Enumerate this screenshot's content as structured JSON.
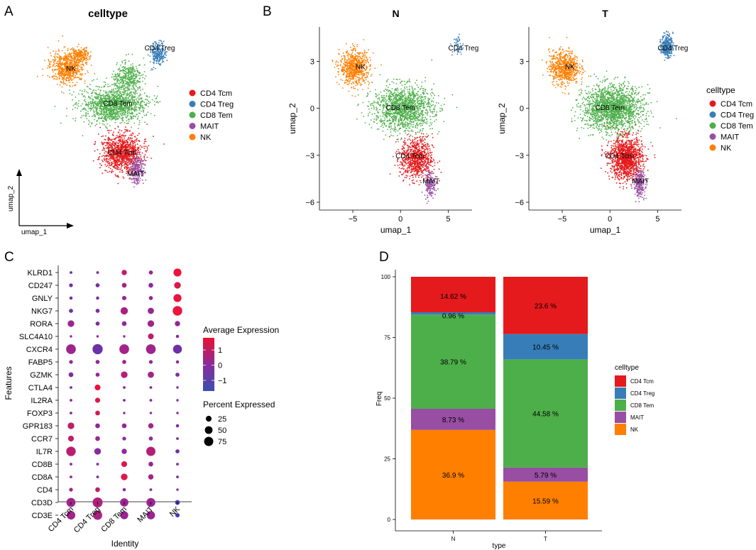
{
  "panel_labels": [
    "A",
    "B",
    "C",
    "D"
  ],
  "celltypes": [
    "CD4 Tcm",
    "CD4 Treg",
    "CD8 Tem",
    "MAIT",
    "NK"
  ],
  "colors": {
    "CD4 Tcm": "#E41A1C",
    "CD4 Treg": "#377EB8",
    "CD8 Tem": "#4DAF4A",
    "MAIT": "#984EA3",
    "NK": "#FF7F00"
  },
  "chart_data": [
    {
      "id": "A",
      "type": "scatter",
      "title": "celltype",
      "xlabel": "umap_1",
      "ylabel": "umap_2",
      "legend_entries": [
        "CD4 Tcm",
        "CD4 Treg",
        "CD8 Tem",
        "MAIT",
        "NK"
      ],
      "cluster_labels": [
        "NK",
        "CD4 Treg",
        "CD8 Tem",
        "CD4 Tcm",
        "MAIT"
      ]
    },
    {
      "id": "B",
      "type": "scatter",
      "facets": [
        "N",
        "T"
      ],
      "xlabel": "umap_1",
      "ylabel": "umap_2",
      "xticks": [
        -5,
        0,
        5
      ],
      "yticks": [
        3,
        0,
        -3,
        -6
      ],
      "xlim": [
        -8.5,
        7.5
      ],
      "ylim": [
        -6.5,
        5.2
      ],
      "legend_title": "celltype",
      "legend_entries": [
        "CD4 Tcm",
        "CD4 Treg",
        "CD8 Tem",
        "MAIT",
        "NK"
      ],
      "cluster_labels": [
        "NK",
        "CD4 Treg",
        "CD8 Tem",
        "CD4 Tcm",
        "MAIT"
      ],
      "clusters": [
        {
          "name": "NK",
          "cx": -4.8,
          "cy": 2.6,
          "sx": 1.3,
          "sy": 0.9
        },
        {
          "name": "CD8 Tem",
          "cx": 0.3,
          "cy": 0.0,
          "sx": 2.6,
          "sy": 1.2
        },
        {
          "name": "CD4 Tcm",
          "cx": 1.7,
          "cy": -3.2,
          "sx": 1.4,
          "sy": 1.1
        },
        {
          "name": "MAIT",
          "cx": 3.1,
          "cy": -4.8,
          "sx": 0.5,
          "sy": 0.7
        },
        {
          "name": "CD4 Treg",
          "cx": 6.0,
          "cy": 4.0,
          "sx": 0.5,
          "sy": 0.6
        }
      ]
    },
    {
      "id": "C",
      "type": "dot",
      "xlabel": "Identity",
      "ylabel": "Features",
      "identities": [
        "CD4 Tcm",
        "CD4 Treg",
        "CD8 Tem",
        "MAIT",
        "NK"
      ],
      "features": [
        "KLRD1",
        "CD247",
        "GNLY",
        "NKG7",
        "RORA",
        "SLC4A10",
        "CXCR4",
        "FABP5",
        "GZMK",
        "CTLA4",
        "IL2RA",
        "FOXP3",
        "GPR183",
        "CCR7",
        "IL7R",
        "CD8B",
        "CD8A",
        "CD4",
        "CD3D",
        "CD3E"
      ],
      "color_title": "Average Expression",
      "color_ticks": [
        1,
        0,
        -1
      ],
      "size_title": "Percent Expressed",
      "size_ticks": [
        25,
        50,
        75
      ],
      "pct": [
        [
          3,
          3,
          20,
          10,
          55
        ],
        [
          8,
          10,
          15,
          15,
          35
        ],
        [
          5,
          5,
          12,
          10,
          55
        ],
        [
          10,
          10,
          45,
          30,
          82
        ],
        [
          35,
          10,
          15,
          35,
          20
        ],
        [
          2,
          2,
          2,
          25,
          5
        ],
        [
          85,
          95,
          85,
          85,
          70
        ],
        [
          8,
          10,
          10,
          8,
          5
        ],
        [
          15,
          10,
          35,
          30,
          10
        ],
        [
          3,
          25,
          3,
          3,
          2
        ],
        [
          3,
          18,
          3,
          3,
          2
        ],
        [
          3,
          15,
          2,
          2,
          2
        ],
        [
          35,
          15,
          15,
          20,
          5
        ],
        [
          25,
          15,
          8,
          10,
          3
        ],
        [
          80,
          35,
          20,
          75,
          10
        ],
        [
          3,
          3,
          25,
          15,
          3
        ],
        [
          3,
          3,
          35,
          20,
          3
        ],
        [
          8,
          15,
          5,
          3,
          2
        ],
        [
          72,
          90,
          60,
          70,
          15
        ],
        [
          65,
          75,
          55,
          60,
          12
        ]
      ],
      "avg": [
        [
          -0.5,
          -0.3,
          1,
          0.3,
          1.8
        ],
        [
          -0.5,
          -0.3,
          0.5,
          0,
          1.5
        ],
        [
          -0.5,
          -0.3,
          0.3,
          0.2,
          1.8
        ],
        [
          -0.5,
          -0.3,
          0.6,
          0.3,
          1.8
        ],
        [
          0.3,
          -0.3,
          0.2,
          0.5,
          0.2
        ],
        [
          0,
          0,
          0,
          1,
          0
        ],
        [
          0.4,
          -0.7,
          0.5,
          0.4,
          -0.6
        ],
        [
          0.3,
          0.3,
          0.3,
          0.3,
          0.3
        ],
        [
          -0.2,
          0.3,
          0.8,
          0.5,
          -0.2
        ],
        [
          0,
          1.8,
          0,
          0,
          0
        ],
        [
          0,
          1.5,
          0,
          0,
          0
        ],
        [
          0,
          1.4,
          0,
          0,
          0
        ],
        [
          1,
          0.2,
          0.2,
          0.5,
          -0.3
        ],
        [
          1,
          0.3,
          0,
          0,
          0
        ],
        [
          0.9,
          0,
          0,
          0.8,
          -0.5
        ],
        [
          0,
          0,
          1.5,
          0.3,
          0
        ],
        [
          0,
          0,
          1.5,
          0.5,
          0
        ],
        [
          0.5,
          1,
          0,
          0,
          0
        ],
        [
          0.4,
          0.7,
          0.3,
          0.3,
          -1.5
        ],
        [
          0.4,
          0.6,
          0.3,
          0.3,
          -1.5
        ]
      ]
    },
    {
      "id": "D",
      "type": "bar",
      "stacked": true,
      "xlabel": "type",
      "ylabel": "Freq",
      "categories": [
        "N",
        "T"
      ],
      "ylim": [
        0,
        100
      ],
      "yticks": [
        0,
        25,
        50,
        75,
        100
      ],
      "legend_title": "celltype",
      "series": [
        {
          "name": "NK",
          "values": [
            36.9,
            15.59
          ],
          "labels": [
            "36.9 %",
            "15.59 %"
          ]
        },
        {
          "name": "MAIT",
          "values": [
            8.73,
            5.79
          ],
          "labels": [
            "8.73 %",
            "5.79 %"
          ]
        },
        {
          "name": "CD8 Tem",
          "values": [
            38.79,
            44.58
          ],
          "labels": [
            "38.79 %",
            "44.58 %"
          ]
        },
        {
          "name": "CD4 Treg",
          "values": [
            0.96,
            10.45
          ],
          "labels": [
            "0.96 %",
            "10.45 %"
          ]
        },
        {
          "name": "CD4 Tcm",
          "values": [
            14.62,
            23.6
          ],
          "labels": [
            "14.62 %",
            "23.6 %"
          ]
        }
      ]
    }
  ]
}
